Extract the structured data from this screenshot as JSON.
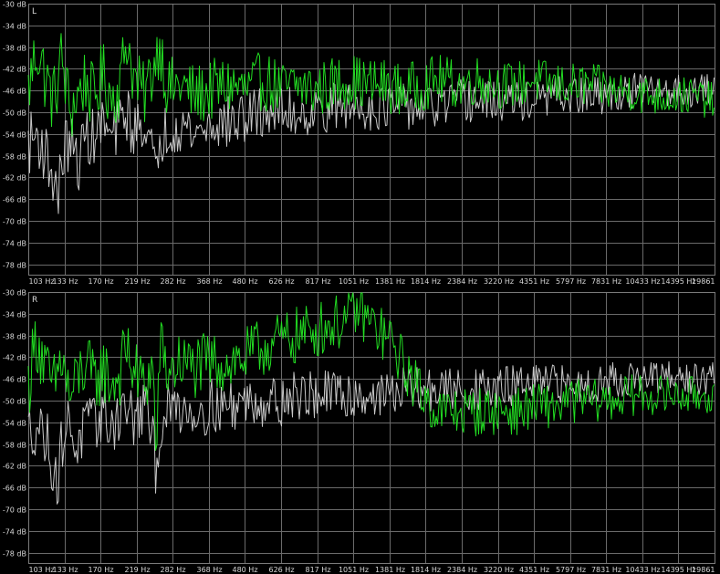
{
  "chart_data": [
    {
      "type": "line",
      "channel_label": "L",
      "x_ticks": [
        "103 Hz",
        "133 Hz",
        "170 Hz",
        "219 Hz",
        "282 Hz",
        "368 Hz",
        "480 Hz",
        "626 Hz",
        "817 Hz",
        "1051 Hz",
        "1381 Hz",
        "1814 Hz",
        "2384 Hz",
        "3220 Hz",
        "4351 Hz",
        "5797 Hz",
        "7831 Hz",
        "10433 Hz",
        "14395 Hz",
        "19861"
      ],
      "y_ticks": [
        "-30 dB",
        "-34 dB",
        "-38 dB",
        "-42 dB",
        "-46 dB",
        "-50 dB",
        "-54 dB",
        "-58 dB",
        "-62 dB",
        "-66 dB",
        "-70 dB",
        "-74 dB",
        "-78 dB"
      ],
      "ylim": [
        -80,
        -30
      ],
      "x_log_range": [
        103,
        19861
      ],
      "grid": true,
      "series": [
        {
          "color": "#22dd22",
          "values": [
            [
              103,
              -46
            ],
            [
              110,
              -38
            ],
            [
              118,
              -44
            ],
            [
              125,
              -48
            ],
            [
              133,
              -40
            ],
            [
              142,
              -50
            ],
            [
              150,
              -47
            ],
            [
              160,
              -44
            ],
            [
              170,
              -48
            ],
            [
              182,
              -43
            ],
            [
              195,
              -47
            ],
            [
              208,
              -45
            ],
            [
              219,
              -36
            ],
            [
              232,
              -44
            ],
            [
              250,
              -47
            ],
            [
              268,
              -42
            ],
            [
              282,
              -37
            ],
            [
              300,
              -46
            ],
            [
              330,
              -45
            ],
            [
              368,
              -47
            ],
            [
              420,
              -46
            ],
            [
              480,
              -45
            ],
            [
              550,
              -46
            ],
            [
              626,
              -44
            ],
            [
              720,
              -46
            ],
            [
              817,
              -45
            ],
            [
              930,
              -46
            ],
            [
              1051,
              -45
            ],
            [
              1200,
              -44
            ],
            [
              1381,
              -45
            ],
            [
              1600,
              -45
            ],
            [
              1814,
              -46
            ],
            [
              2100,
              -45
            ],
            [
              2384,
              -44
            ],
            [
              2800,
              -45
            ],
            [
              3220,
              -44
            ],
            [
              3800,
              -45
            ],
            [
              4351,
              -45
            ],
            [
              5000,
              -44
            ],
            [
              5797,
              -45
            ],
            [
              6800,
              -45
            ],
            [
              7831,
              -45
            ],
            [
              9000,
              -46
            ],
            [
              10433,
              -46
            ],
            [
              12000,
              -47
            ],
            [
              14395,
              -47
            ],
            [
              17000,
              -47
            ],
            [
              19861,
              -48
            ]
          ]
        },
        {
          "color": "#c8c8c8",
          "values": [
            [
              103,
              -56
            ],
            [
              110,
              -54
            ],
            [
              118,
              -58
            ],
            [
              125,
              -62
            ],
            [
              130,
              -66
            ],
            [
              133,
              -58
            ],
            [
              142,
              -55
            ],
            [
              150,
              -60
            ],
            [
              160,
              -54
            ],
            [
              170,
              -55
            ],
            [
              182,
              -52
            ],
            [
              195,
              -55
            ],
            [
              208,
              -52
            ],
            [
              219,
              -50
            ],
            [
              232,
              -54
            ],
            [
              250,
              -51
            ],
            [
              268,
              -58
            ],
            [
              275,
              -64
            ],
            [
              282,
              -55
            ],
            [
              300,
              -53
            ],
            [
              330,
              -52
            ],
            [
              368,
              -54
            ],
            [
              420,
              -52
            ],
            [
              480,
              -52
            ],
            [
              550,
              -51
            ],
            [
              626,
              -50
            ],
            [
              720,
              -50
            ],
            [
              817,
              -50
            ],
            [
              930,
              -50
            ],
            [
              1051,
              -49
            ],
            [
              1200,
              -49
            ],
            [
              1381,
              -49
            ],
            [
              1600,
              -49
            ],
            [
              1814,
              -49
            ],
            [
              2100,
              -49
            ],
            [
              2384,
              -49
            ],
            [
              2800,
              -48
            ],
            [
              3220,
              -48
            ],
            [
              3800,
              -48
            ],
            [
              4351,
              -48
            ],
            [
              5000,
              -48
            ],
            [
              5797,
              -47
            ],
            [
              6800,
              -47
            ],
            [
              7831,
              -47
            ],
            [
              9000,
              -47
            ],
            [
              10433,
              -46
            ],
            [
              12000,
              -46
            ],
            [
              14395,
              -46
            ],
            [
              17000,
              -46
            ],
            [
              19861,
              -46
            ]
          ]
        }
      ]
    },
    {
      "type": "line",
      "channel_label": "R",
      "x_ticks": [
        "103 Hz",
        "133 Hz",
        "170 Hz",
        "219 Hz",
        "282 Hz",
        "368 Hz",
        "480 Hz",
        "626 Hz",
        "817 Hz",
        "1051 Hz",
        "1381 Hz",
        "1814 Hz",
        "2384 Hz",
        "3220 Hz",
        "4351 Hz",
        "5797 Hz",
        "7831 Hz",
        "10433 Hz",
        "14395 Hz",
        "19861"
      ],
      "y_ticks": [
        "-30 dB",
        "-34 dB",
        "-38 dB",
        "-42 dB",
        "-46 dB",
        "-50 dB",
        "-54 dB",
        "-58 dB",
        "-62 dB",
        "-66 dB",
        "-70 dB",
        "-74 dB",
        "-78 dB"
      ],
      "ylim": [
        -80,
        -30
      ],
      "x_log_range": [
        103,
        19861
      ],
      "grid": true,
      "series": [
        {
          "color": "#22dd22",
          "values": [
            [
              103,
              -47
            ],
            [
              110,
              -38
            ],
            [
              118,
              -45
            ],
            [
              125,
              -48
            ],
            [
              133,
              -42
            ],
            [
              142,
              -50
            ],
            [
              150,
              -46
            ],
            [
              160,
              -43
            ],
            [
              170,
              -47
            ],
            [
              182,
              -44
            ],
            [
              195,
              -47
            ],
            [
              208,
              -45
            ],
            [
              219,
              -40
            ],
            [
              232,
              -45
            ],
            [
              250,
              -47
            ],
            [
              268,
              -44
            ],
            [
              275,
              -62
            ],
            [
              282,
              -40
            ],
            [
              300,
              -45
            ],
            [
              330,
              -43
            ],
            [
              368,
              -44
            ],
            [
              420,
              -43
            ],
            [
              480,
              -43
            ],
            [
              550,
              -42
            ],
            [
              626,
              -40
            ],
            [
              720,
              -39
            ],
            [
              817,
              -38
            ],
            [
              930,
              -37
            ],
            [
              1051,
              -36
            ],
            [
              1200,
              -35
            ],
            [
              1300,
              -33
            ],
            [
              1381,
              -35
            ],
            [
              1500,
              -37
            ],
            [
              1650,
              -39
            ],
            [
              1814,
              -43
            ],
            [
              2000,
              -47
            ],
            [
              2200,
              -50
            ],
            [
              2384,
              -52
            ],
            [
              2800,
              -52
            ],
            [
              3220,
              -52
            ],
            [
              3800,
              -52
            ],
            [
              4351,
              -52
            ],
            [
              5000,
              -51
            ],
            [
              5797,
              -51
            ],
            [
              6800,
              -50
            ],
            [
              7831,
              -50
            ],
            [
              9000,
              -50
            ],
            [
              10433,
              -49
            ],
            [
              12000,
              -49
            ],
            [
              14395,
              -49
            ],
            [
              17000,
              -49
            ],
            [
              19861,
              -49
            ]
          ]
        },
        {
          "color": "#c8c8c8",
          "values": [
            [
              103,
              -56
            ],
            [
              110,
              -54
            ],
            [
              118,
              -57
            ],
            [
              125,
              -62
            ],
            [
              130,
              -66
            ],
            [
              133,
              -57
            ],
            [
              142,
              -54
            ],
            [
              150,
              -59
            ],
            [
              160,
              -54
            ],
            [
              170,
              -55
            ],
            [
              182,
              -52
            ],
            [
              195,
              -55
            ],
            [
              208,
              -52
            ],
            [
              219,
              -51
            ],
            [
              232,
              -54
            ],
            [
              250,
              -51
            ],
            [
              268,
              -57
            ],
            [
              275,
              -64
            ],
            [
              282,
              -55
            ],
            [
              300,
              -52
            ],
            [
              330,
              -51
            ],
            [
              368,
              -52
            ],
            [
              420,
              -51
            ],
            [
              480,
              -51
            ],
            [
              550,
              -50
            ],
            [
              626,
              -50
            ],
            [
              720,
              -50
            ],
            [
              817,
              -49
            ],
            [
              930,
              -49
            ],
            [
              1051,
              -49
            ],
            [
              1200,
              -49
            ],
            [
              1381,
              -49
            ],
            [
              1600,
              -49
            ],
            [
              1814,
              -48
            ],
            [
              2100,
              -48
            ],
            [
              2384,
              -48
            ],
            [
              2800,
              -48
            ],
            [
              3220,
              -48
            ],
            [
              3800,
              -48
            ],
            [
              4351,
              -47
            ],
            [
              5000,
              -47
            ],
            [
              5797,
              -47
            ],
            [
              6800,
              -47
            ],
            [
              7831,
              -47
            ],
            [
              9000,
              -46
            ],
            [
              10433,
              -46
            ],
            [
              12000,
              -46
            ],
            [
              14395,
              -46
            ],
            [
              17000,
              -46
            ],
            [
              19861,
              -46
            ]
          ]
        }
      ]
    }
  ]
}
